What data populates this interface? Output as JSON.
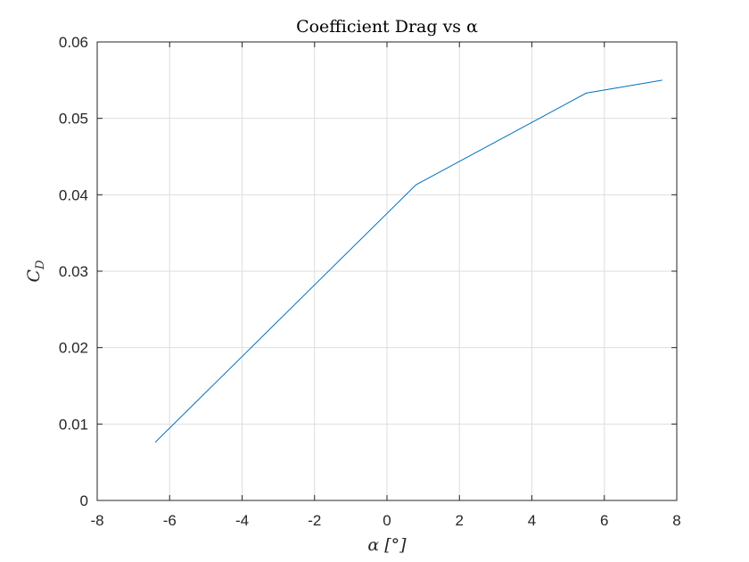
{
  "chart_data": {
    "type": "line",
    "title": "Coefficient Drag vs α",
    "xlabel": "α [°]",
    "ylabel": "C_D",
    "xlim": [
      -8,
      8
    ],
    "ylim": [
      0,
      0.06
    ],
    "xticks": [
      -8,
      -6,
      -4,
      -2,
      0,
      2,
      4,
      6,
      8
    ],
    "yticks": [
      0,
      0.01,
      0.02,
      0.03,
      0.04,
      0.05,
      0.06
    ],
    "xtick_labels": [
      "-8",
      "-6",
      "-4",
      "-2",
      "0",
      "2",
      "4",
      "6",
      "8"
    ],
    "ytick_labels": [
      "0",
      "0.01",
      "0.02",
      "0.03",
      "0.04",
      "0.05",
      "0.06"
    ],
    "grid": true,
    "legend": "none",
    "series": [
      {
        "color": "#0072BD",
        "x": [
          -6.4,
          0.8,
          5.5,
          7.6
        ],
        "y": [
          0.0076,
          0.0413,
          0.0533,
          0.055
        ]
      }
    ]
  }
}
